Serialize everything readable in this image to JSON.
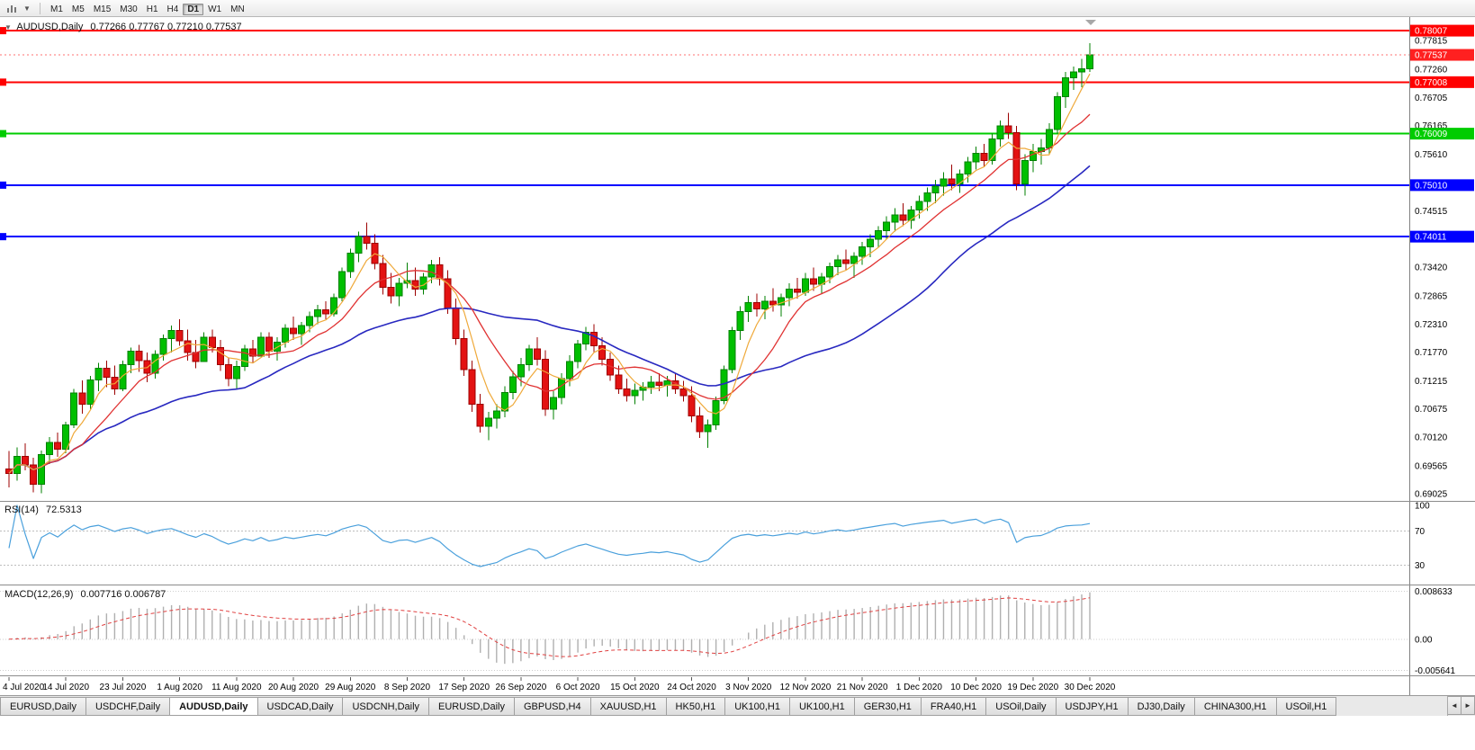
{
  "colors": {
    "bull": "#00bf00",
    "bull_border": "#008000",
    "bear": "#e31212",
    "bear_border": "#9c0000",
    "rsi": "#4aa0dc",
    "macd_hist": "#b0b0b0",
    "macd_signal": "#e04040",
    "axis_text": "#000000",
    "badge_text": "#ffffff"
  },
  "toolbar": {
    "icons": [
      {
        "name": "bar-chart-icon"
      },
      {
        "name": "chart-dropdown-icon",
        "glyph": "▼"
      }
    ],
    "timeframes": [
      {
        "label": "M1",
        "active": false
      },
      {
        "label": "M5",
        "active": false
      },
      {
        "label": "M15",
        "active": false
      },
      {
        "label": "M30",
        "active": false
      },
      {
        "label": "H1",
        "active": false
      },
      {
        "label": "H4",
        "active": false
      },
      {
        "label": "D1",
        "active": true
      },
      {
        "label": "W1",
        "active": false
      },
      {
        "label": "MN",
        "active": false
      }
    ]
  },
  "chart": {
    "title": "AUDUSD,Daily",
    "ohlc": "0.77266 0.77767 0.77210 0.77537",
    "corner_glyph": "▼"
  },
  "rsi_panel": {
    "label": "RSI(14)",
    "value": "72.5313"
  },
  "macd_panel": {
    "label": "MACD(12,26,9)",
    "values": "0.007716 0.006787"
  },
  "chart_data": {
    "type": "candlestick",
    "symbol": "AUDUSD",
    "period": "Daily",
    "current": {
      "open": 0.77266,
      "high": 0.77767,
      "low": 0.7721,
      "close": 0.77537
    },
    "y_scale": {
      "max": 0.7827,
      "min": 0.68885
    },
    "y_ticks": [
      0.77815,
      0.7726,
      0.76705,
      0.76165,
      0.7561,
      0.74515,
      0.7342,
      0.72865,
      0.7231,
      0.7177,
      0.71215,
      0.70675,
      0.7012,
      0.69565,
      0.69025
    ],
    "x_labels": [
      "4 Jul 2020",
      "14 Jul 2020",
      "23 Jul 2020",
      "1 Aug 2020",
      "11 Aug 2020",
      "20 Aug 2020",
      "29 Aug 2020",
      "8 Sep 2020",
      "17 Sep 2020",
      "26 Sep 2020",
      "6 Oct 2020",
      "15 Oct 2020",
      "24 Oct 2020",
      "3 Nov 2020",
      "12 Nov 2020",
      "21 Nov 2020",
      "1 Dec 2020",
      "10 Dec 2020",
      "19 Dec 2020",
      "30 Dec 2020"
    ],
    "hlines": [
      {
        "value": 0.78007,
        "color": "#ff0000",
        "kind": "resistance"
      },
      {
        "value": 0.77008,
        "color": "#ff0000",
        "kind": "resistance"
      },
      {
        "value": 0.76009,
        "color": "#00cc00",
        "kind": "level"
      },
      {
        "value": 0.7501,
        "color": "#0000ff",
        "kind": "support"
      },
      {
        "value": 0.74011,
        "color": "#0000ff",
        "kind": "support"
      }
    ],
    "bid": {
      "value": 0.77537,
      "color": "#ff2020"
    },
    "moving_averages": [
      {
        "name": "fast",
        "period": 5,
        "method": "sma",
        "color": "#efa93a"
      },
      {
        "name": "mid",
        "period": 10,
        "method": "sma",
        "color": "#e03232"
      },
      {
        "name": "slow",
        "period": 30,
        "method": "sma",
        "color": "#2828c0"
      }
    ],
    "rsi": {
      "period": 14,
      "current": 72.5313,
      "levels": [
        70,
        30
      ],
      "levels_display": [
        100,
        70,
        30
      ]
    },
    "macd": {
      "fast": 12,
      "slow": 26,
      "signal": 9,
      "current_main": 0.007716,
      "current_signal": 0.006787,
      "axis": [
        {
          "label": "0.008633",
          "value": 0.008633
        },
        {
          "label": "0.00",
          "value": 0
        },
        {
          "label": "-0.005641",
          "value": -0.005641
        }
      ]
    },
    "candles": [
      [
        0.695,
        0.6985,
        0.6915,
        0.6942
      ],
      [
        0.6942,
        0.6992,
        0.6928,
        0.6975
      ],
      [
        0.6975,
        0.7,
        0.6948,
        0.6958
      ],
      [
        0.6958,
        0.6972,
        0.6905,
        0.6921
      ],
      [
        0.6921,
        0.6986,
        0.6903,
        0.6978
      ],
      [
        0.6978,
        0.7012,
        0.696,
        0.7002
      ],
      [
        0.7002,
        0.7021,
        0.6974,
        0.6989
      ],
      [
        0.6989,
        0.7042,
        0.6981,
        0.7036
      ],
      [
        0.7036,
        0.7106,
        0.703,
        0.7098
      ],
      [
        0.7098,
        0.7122,
        0.7058,
        0.7076
      ],
      [
        0.7076,
        0.7131,
        0.7066,
        0.7123
      ],
      [
        0.7123,
        0.7156,
        0.7101,
        0.7146
      ],
      [
        0.7146,
        0.7161,
        0.7109,
        0.7128
      ],
      [
        0.7128,
        0.7151,
        0.7094,
        0.7106
      ],
      [
        0.7106,
        0.7161,
        0.7101,
        0.7153
      ],
      [
        0.7153,
        0.7186,
        0.7136,
        0.7179
      ],
      [
        0.7179,
        0.7191,
        0.7139,
        0.7161
      ],
      [
        0.7161,
        0.7176,
        0.7119,
        0.7136
      ],
      [
        0.7136,
        0.7181,
        0.7126,
        0.7173
      ],
      [
        0.7173,
        0.7211,
        0.7161,
        0.7203
      ],
      [
        0.7203,
        0.7229,
        0.7176,
        0.7219
      ],
      [
        0.7219,
        0.7241,
        0.7189,
        0.7199
      ],
      [
        0.7199,
        0.7221,
        0.7161,
        0.7176
      ],
      [
        0.7176,
        0.7201,
        0.7146,
        0.7159
      ],
      [
        0.7159,
        0.7216,
        0.7159,
        0.7206
      ],
      [
        0.7206,
        0.7221,
        0.7176,
        0.7186
      ],
      [
        0.7186,
        0.7201,
        0.7141,
        0.7153
      ],
      [
        0.7153,
        0.7166,
        0.7111,
        0.7126
      ],
      [
        0.7126,
        0.7161,
        0.7106,
        0.7149
      ],
      [
        0.7149,
        0.7191,
        0.7141,
        0.7183
      ],
      [
        0.7183,
        0.7201,
        0.7156,
        0.7169
      ],
      [
        0.7169,
        0.7216,
        0.7169,
        0.7206
      ],
      [
        0.7206,
        0.7216,
        0.7166,
        0.7179
      ],
      [
        0.7179,
        0.7206,
        0.7161,
        0.7196
      ],
      [
        0.7196,
        0.7231,
        0.7186,
        0.7223
      ],
      [
        0.7223,
        0.7246,
        0.7201,
        0.7213
      ],
      [
        0.7213,
        0.7236,
        0.7191,
        0.7229
      ],
      [
        0.7229,
        0.7256,
        0.7216,
        0.7246
      ],
      [
        0.7246,
        0.7269,
        0.7231,
        0.7259
      ],
      [
        0.7259,
        0.7276,
        0.7241,
        0.7251
      ],
      [
        0.7251,
        0.7291,
        0.7246,
        0.7283
      ],
      [
        0.7283,
        0.7341,
        0.7276,
        0.7333
      ],
      [
        0.7333,
        0.7378,
        0.7321,
        0.7369
      ],
      [
        0.7369,
        0.7411,
        0.7352,
        0.7401
      ],
      [
        0.7401,
        0.7428,
        0.7376,
        0.7388
      ],
      [
        0.7388,
        0.7406,
        0.7338,
        0.7349
      ],
      [
        0.7349,
        0.7366,
        0.7289,
        0.7303
      ],
      [
        0.7303,
        0.7331,
        0.7271,
        0.7286
      ],
      [
        0.7286,
        0.7321,
        0.7266,
        0.7311
      ],
      [
        0.7311,
        0.7351,
        0.7301,
        0.7316
      ],
      [
        0.7316,
        0.7341,
        0.7286,
        0.7299
      ],
      [
        0.7299,
        0.7331,
        0.7289,
        0.7323
      ],
      [
        0.7323,
        0.7356,
        0.7311,
        0.7346
      ],
      [
        0.7346,
        0.7361,
        0.7306,
        0.7319
      ],
      [
        0.7319,
        0.7336,
        0.7251,
        0.7263
      ],
      [
        0.7263,
        0.7281,
        0.7191,
        0.7203
      ],
      [
        0.7203,
        0.7221,
        0.7131,
        0.7143
      ],
      [
        0.7143,
        0.7161,
        0.7061,
        0.7076
      ],
      [
        0.7076,
        0.7096,
        0.7021,
        0.7033
      ],
      [
        0.7033,
        0.7061,
        0.7006,
        0.7049
      ],
      [
        0.7049,
        0.7076,
        0.7029,
        0.7063
      ],
      [
        0.7063,
        0.7111,
        0.7051,
        0.7099
      ],
      [
        0.7099,
        0.7141,
        0.7086,
        0.7129
      ],
      [
        0.7129,
        0.7166,
        0.7111,
        0.7153
      ],
      [
        0.7153,
        0.7191,
        0.7141,
        0.7183
      ],
      [
        0.7183,
        0.7206,
        0.7151,
        0.7163
      ],
      [
        0.7163,
        0.7181,
        0.7053,
        0.7066
      ],
      [
        0.7066,
        0.7101,
        0.7046,
        0.7089
      ],
      [
        0.7089,
        0.7136,
        0.7076,
        0.7126
      ],
      [
        0.7126,
        0.7171,
        0.7111,
        0.7159
      ],
      [
        0.7159,
        0.7201,
        0.7146,
        0.7193
      ],
      [
        0.7193,
        0.7226,
        0.7181,
        0.7216
      ],
      [
        0.7216,
        0.7231,
        0.7176,
        0.7189
      ],
      [
        0.7189,
        0.7206,
        0.7151,
        0.7163
      ],
      [
        0.7163,
        0.7176,
        0.7121,
        0.7133
      ],
      [
        0.7133,
        0.7151,
        0.7096,
        0.7106
      ],
      [
        0.7106,
        0.7126,
        0.7081,
        0.7093
      ],
      [
        0.7093,
        0.7116,
        0.7076,
        0.7103
      ],
      [
        0.7103,
        0.7119,
        0.7083,
        0.7109
      ],
      [
        0.7109,
        0.7131,
        0.7096,
        0.7119
      ],
      [
        0.7119,
        0.7136,
        0.7101,
        0.7113
      ],
      [
        0.7113,
        0.7131,
        0.7091,
        0.7121
      ],
      [
        0.7121,
        0.7136,
        0.7096,
        0.7106
      ],
      [
        0.7106,
        0.7121,
        0.7081,
        0.7093
      ],
      [
        0.7093,
        0.7111,
        0.7041,
        0.7053
      ],
      [
        0.7053,
        0.7071,
        0.7011,
        0.7023
      ],
      [
        0.7023,
        0.7046,
        0.6991,
        0.7036
      ],
      [
        0.7036,
        0.7091,
        0.7026,
        0.7083
      ],
      [
        0.7083,
        0.7151,
        0.7076,
        0.7143
      ],
      [
        0.7143,
        0.7226,
        0.7136,
        0.7219
      ],
      [
        0.7219,
        0.7266,
        0.7201,
        0.7256
      ],
      [
        0.7256,
        0.7286,
        0.7236,
        0.7273
      ],
      [
        0.7273,
        0.7291,
        0.7246,
        0.7261
      ],
      [
        0.7261,
        0.7286,
        0.7241,
        0.7276
      ],
      [
        0.7276,
        0.7301,
        0.7256,
        0.7269
      ],
      [
        0.7269,
        0.7291,
        0.7246,
        0.7283
      ],
      [
        0.7283,
        0.7311,
        0.7266,
        0.7299
      ],
      [
        0.7299,
        0.7321,
        0.7281,
        0.7293
      ],
      [
        0.7293,
        0.7331,
        0.7286,
        0.7319
      ],
      [
        0.7319,
        0.7341,
        0.7296,
        0.7309
      ],
      [
        0.7309,
        0.7331,
        0.7291,
        0.7323
      ],
      [
        0.7323,
        0.7351,
        0.7311,
        0.7343
      ],
      [
        0.7343,
        0.7366,
        0.7326,
        0.7356
      ],
      [
        0.7356,
        0.7376,
        0.7336,
        0.7349
      ],
      [
        0.7349,
        0.7371,
        0.7321,
        0.7363
      ],
      [
        0.7363,
        0.7391,
        0.7346,
        0.7381
      ],
      [
        0.7381,
        0.7406,
        0.7361,
        0.7396
      ],
      [
        0.7396,
        0.7421,
        0.7381,
        0.7413
      ],
      [
        0.7413,
        0.7441,
        0.7396,
        0.7429
      ],
      [
        0.7429,
        0.7456,
        0.7411,
        0.7443
      ],
      [
        0.7443,
        0.7466,
        0.7421,
        0.7433
      ],
      [
        0.7433,
        0.7461,
        0.7416,
        0.7453
      ],
      [
        0.7453,
        0.7481,
        0.7436,
        0.7469
      ],
      [
        0.7469,
        0.7496,
        0.7451,
        0.7486
      ],
      [
        0.7486,
        0.7511,
        0.7466,
        0.7499
      ],
      [
        0.7499,
        0.7526,
        0.7481,
        0.7513
      ],
      [
        0.7513,
        0.7541,
        0.7491,
        0.7503
      ],
      [
        0.7503,
        0.7531,
        0.7486,
        0.7523
      ],
      [
        0.7523,
        0.7556,
        0.7506,
        0.7546
      ],
      [
        0.7546,
        0.7576,
        0.7531,
        0.7563
      ],
      [
        0.7563,
        0.7581,
        0.7536,
        0.7549
      ],
      [
        0.7549,
        0.7601,
        0.7541,
        0.7591
      ],
      [
        0.7591,
        0.7626,
        0.7576,
        0.7616
      ],
      [
        0.7616,
        0.7641,
        0.7591,
        0.7603
      ],
      [
        0.7603,
        0.7616,
        0.7491,
        0.7503
      ],
      [
        0.7503,
        0.7561,
        0.7481,
        0.7549
      ],
      [
        0.7549,
        0.7581,
        0.7526,
        0.7566
      ],
      [
        0.7566,
        0.7591,
        0.7541,
        0.7573
      ],
      [
        0.7573,
        0.7621,
        0.7561,
        0.7609
      ],
      [
        0.7609,
        0.7681,
        0.7601,
        0.7673
      ],
      [
        0.7673,
        0.7721,
        0.7651,
        0.7709
      ],
      [
        0.7709,
        0.7731,
        0.7686,
        0.7721
      ],
      [
        0.7721,
        0.7746,
        0.7691,
        0.7727
      ],
      [
        0.77266,
        0.77767,
        0.7721,
        0.77537
      ]
    ]
  },
  "tabs": [
    {
      "label": "EURUSD,Daily",
      "active": false
    },
    {
      "label": "USDCHF,Daily",
      "active": false
    },
    {
      "label": "AUDUSD,Daily",
      "active": true
    },
    {
      "label": "USDCAD,Daily",
      "active": false
    },
    {
      "label": "USDCNH,Daily",
      "active": false
    },
    {
      "label": "EURUSD,Daily",
      "active": false
    },
    {
      "label": "GBPUSD,H4",
      "active": false
    },
    {
      "label": "XAUUSD,H1",
      "active": false
    },
    {
      "label": "HK50,H1",
      "active": false
    },
    {
      "label": "UK100,H1",
      "active": false
    },
    {
      "label": "UK100,H1",
      "active": false
    },
    {
      "label": "GER30,H1",
      "active": false
    },
    {
      "label": "FRA40,H1",
      "active": false
    },
    {
      "label": "USOil,Daily",
      "active": false
    },
    {
      "label": "USDJPY,H1",
      "active": false
    },
    {
      "label": "DJ30,Daily",
      "active": false
    },
    {
      "label": "CHINA300,H1",
      "active": false
    },
    {
      "label": "USOil,H1",
      "active": false
    }
  ],
  "tab_arrows": {
    "left": "◄",
    "right": "►"
  }
}
